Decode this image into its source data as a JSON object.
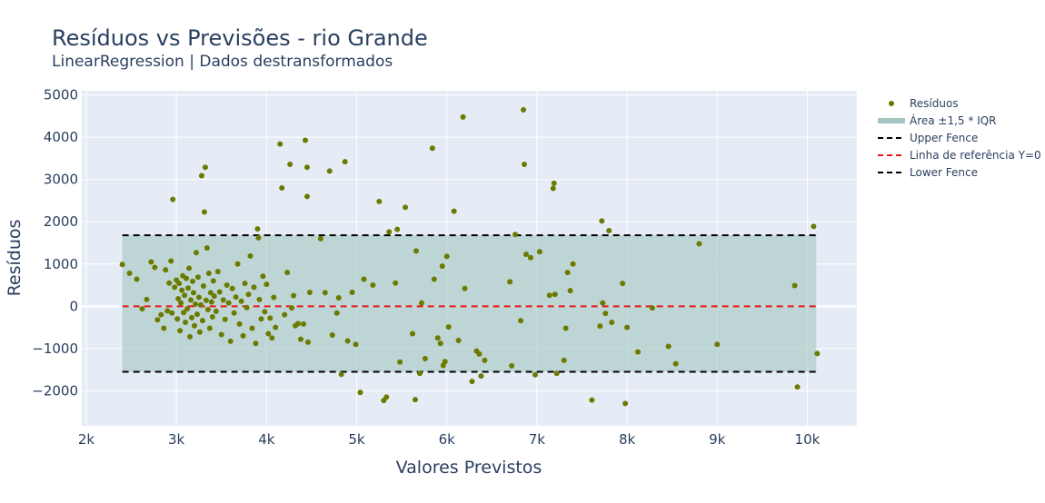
{
  "chart_data": {
    "type": "scatter",
    "title": "Resíduos vs Previsões - rio Grande",
    "subtitle": "LinearRegression | Dados destransformados",
    "xlabel": "Valores Previstos",
    "ylabel": "Resíduos",
    "xlim": [
      1950,
      10550
    ],
    "ylim": [
      -2830,
      5100
    ],
    "x_ticks": [
      2000,
      3000,
      4000,
      5000,
      6000,
      7000,
      8000,
      9000,
      10000
    ],
    "x_tick_labels": [
      "2k",
      "3k",
      "4k",
      "5k",
      "6k",
      "7k",
      "8k",
      "9k",
      "10k"
    ],
    "y_ticks": [
      -2000,
      -1000,
      0,
      1000,
      2000,
      3000,
      4000,
      5000
    ],
    "y_tick_labels": [
      "−2000",
      "−1000",
      "0",
      "1000",
      "2000",
      "3000",
      "4000",
      "5000"
    ],
    "grid": true,
    "legend_position": "top-right",
    "colors": {
      "points": "#6b7a00",
      "iqr_area": "#a3c6c0",
      "fence": "#000000",
      "reference": "#e8151b",
      "plot_bg": "#e5ecf6",
      "grid": "#ffffff"
    },
    "upper_fence": 1680,
    "lower_fence": -1550,
    "reference_y": 0,
    "fence_x_range": [
      2400,
      10100
    ],
    "legend": {
      "points": "Resíduos",
      "area": "Área ±1,5 * IQR",
      "upper": "Upper Fence",
      "reference": "Linha de referência Y=0",
      "lower": "Lower Fence"
    },
    "points": [
      [
        2400,
        990
      ],
      [
        2480,
        780
      ],
      [
        2560,
        640
      ],
      [
        2620,
        -60
      ],
      [
        2670,
        160
      ],
      [
        2720,
        1050
      ],
      [
        2760,
        920
      ],
      [
        2790,
        -320
      ],
      [
        2830,
        -200
      ],
      [
        2860,
        -520
      ],
      [
        2880,
        860
      ],
      [
        2900,
        -110
      ],
      [
        2920,
        550
      ],
      [
        2940,
        1070
      ],
      [
        2950,
        -160
      ],
      [
        2960,
        2530
      ],
      [
        2980,
        450
      ],
      [
        3000,
        620
      ],
      [
        3010,
        -300
      ],
      [
        3020,
        180
      ],
      [
        3030,
        540
      ],
      [
        3040,
        -580
      ],
      [
        3050,
        80
      ],
      [
        3060,
        380
      ],
      [
        3070,
        720
      ],
      [
        3080,
        -150
      ],
      [
        3090,
        260
      ],
      [
        3100,
        -380
      ],
      [
        3110,
        660
      ],
      [
        3120,
        -60
      ],
      [
        3130,
        430
      ],
      [
        3140,
        900
      ],
      [
        3150,
        -720
      ],
      [
        3160,
        150
      ],
      [
        3170,
        -270
      ],
      [
        3180,
        590
      ],
      [
        3190,
        320
      ],
      [
        3200,
        -460
      ],
      [
        3210,
        50
      ],
      [
        3220,
        1270
      ],
      [
        3230,
        -190
      ],
      [
        3240,
        690
      ],
      [
        3250,
        210
      ],
      [
        3260,
        -610
      ],
      [
        3270,
        30
      ],
      [
        3280,
        3090
      ],
      [
        3290,
        -340
      ],
      [
        3300,
        480
      ],
      [
        3310,
        2230
      ],
      [
        3320,
        3290
      ],
      [
        3330,
        140
      ],
      [
        3340,
        1380
      ],
      [
        3350,
        -80
      ],
      [
        3360,
        780
      ],
      [
        3370,
        -520
      ],
      [
        3380,
        320
      ],
      [
        3390,
        100
      ],
      [
        3400,
        -250
      ],
      [
        3410,
        600
      ],
      [
        3420,
        240
      ],
      [
        3440,
        -120
      ],
      [
        3460,
        820
      ],
      [
        3480,
        340
      ],
      [
        3500,
        -670
      ],
      [
        3520,
        150
      ],
      [
        3540,
        -310
      ],
      [
        3560,
        500
      ],
      [
        3580,
        80
      ],
      [
        3600,
        -830
      ],
      [
        3620,
        420
      ],
      [
        3640,
        -160
      ],
      [
        3660,
        220
      ],
      [
        3680,
        1000
      ],
      [
        3700,
        -420
      ],
      [
        3720,
        120
      ],
      [
        3740,
        -700
      ],
      [
        3760,
        540
      ],
      [
        3780,
        -30
      ],
      [
        3800,
        280
      ],
      [
        3820,
        1190
      ],
      [
        3840,
        -520
      ],
      [
        3860,
        450
      ],
      [
        3880,
        -880
      ],
      [
        3900,
        1830
      ],
      [
        3910,
        1620
      ],
      [
        3920,
        160
      ],
      [
        3940,
        -300
      ],
      [
        3960,
        710
      ],
      [
        3980,
        -130
      ],
      [
        4000,
        520
      ],
      [
        4020,
        -650
      ],
      [
        4040,
        -280
      ],
      [
        4060,
        -750
      ],
      [
        4080,
        210
      ],
      [
        4100,
        -500
      ],
      [
        4150,
        3840
      ],
      [
        4170,
        2800
      ],
      [
        4200,
        -200
      ],
      [
        4230,
        800
      ],
      [
        4260,
        3360
      ],
      [
        4280,
        -40
      ],
      [
        4300,
        250
      ],
      [
        4320,
        -460
      ],
      [
        4350,
        -410
      ],
      [
        4380,
        -780
      ],
      [
        4410,
        -420
      ],
      [
        4430,
        3930
      ],
      [
        4450,
        3290
      ],
      [
        4450,
        2600
      ],
      [
        4460,
        -850
      ],
      [
        4480,
        330
      ],
      [
        4600,
        1600
      ],
      [
        4650,
        320
      ],
      [
        4700,
        3200
      ],
      [
        4730,
        -680
      ],
      [
        4780,
        -160
      ],
      [
        4800,
        200
      ],
      [
        4830,
        -1610
      ],
      [
        4870,
        3420
      ],
      [
        4900,
        -820
      ],
      [
        4950,
        330
      ],
      [
        4990,
        -900
      ],
      [
        5040,
        -2040
      ],
      [
        5080,
        640
      ],
      [
        5180,
        500
      ],
      [
        5250,
        2480
      ],
      [
        5300,
        -2230
      ],
      [
        5330,
        -2150
      ],
      [
        5360,
        1760
      ],
      [
        5430,
        550
      ],
      [
        5450,
        1820
      ],
      [
        5480,
        -1320
      ],
      [
        5540,
        2340
      ],
      [
        5620,
        -650
      ],
      [
        5650,
        -2210
      ],
      [
        5660,
        1310
      ],
      [
        5700,
        -1590
      ],
      [
        5720,
        80
      ],
      [
        5760,
        -1240
      ],
      [
        5840,
        3740
      ],
      [
        5860,
        640
      ],
      [
        5900,
        -750
      ],
      [
        5930,
        -880
      ],
      [
        5950,
        950
      ],
      [
        5960,
        -1400
      ],
      [
        5980,
        -1310
      ],
      [
        6000,
        1180
      ],
      [
        6020,
        -490
      ],
      [
        6080,
        2250
      ],
      [
        6130,
        -810
      ],
      [
        6180,
        4480
      ],
      [
        6200,
        420
      ],
      [
        6280,
        -1780
      ],
      [
        6330,
        -1060
      ],
      [
        6360,
        -1130
      ],
      [
        6380,
        -1650
      ],
      [
        6420,
        -1280
      ],
      [
        6700,
        580
      ],
      [
        6720,
        -1410
      ],
      [
        6760,
        1700
      ],
      [
        6820,
        -340
      ],
      [
        6850,
        4650
      ],
      [
        6860,
        3360
      ],
      [
        6880,
        1230
      ],
      [
        6930,
        1150
      ],
      [
        6980,
        -1620
      ],
      [
        7030,
        1290
      ],
      [
        7140,
        260
      ],
      [
        7180,
        2790
      ],
      [
        7190,
        2910
      ],
      [
        7200,
        280
      ],
      [
        7220,
        -1590
      ],
      [
        7300,
        -1280
      ],
      [
        7320,
        -520
      ],
      [
        7340,
        800
      ],
      [
        7370,
        370
      ],
      [
        7400,
        1000
      ],
      [
        7610,
        -2220
      ],
      [
        7700,
        -470
      ],
      [
        7720,
        2020
      ],
      [
        7730,
        80
      ],
      [
        7760,
        -170
      ],
      [
        7800,
        1790
      ],
      [
        7830,
        -380
      ],
      [
        7950,
        540
      ],
      [
        7980,
        -2300
      ],
      [
        8000,
        -500
      ],
      [
        8120,
        -1080
      ],
      [
        8280,
        -40
      ],
      [
        8460,
        -950
      ],
      [
        8540,
        -1360
      ],
      [
        8800,
        1480
      ],
      [
        9000,
        -900
      ],
      [
        9860,
        490
      ],
      [
        9890,
        -1910
      ],
      [
        10070,
        1890
      ],
      [
        10110,
        -1120
      ]
    ]
  }
}
